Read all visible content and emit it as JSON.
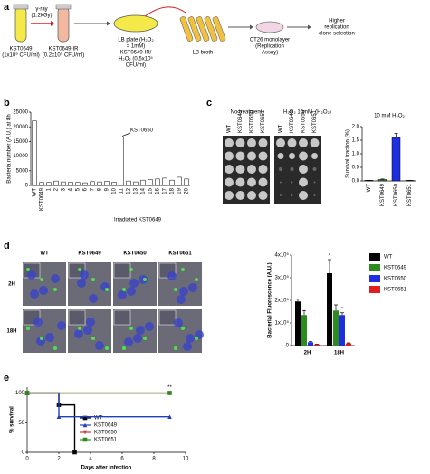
{
  "panel_labels": [
    "a",
    "b",
    "c",
    "d",
    "e"
  ],
  "diagram": {
    "wt_tube": [
      "KST0649",
      "(1x10⁹ CFU/ml)"
    ],
    "irradiation": [
      "γ-ray",
      "(1.2kGy)"
    ],
    "ir_tube": [
      "KST0649-IR",
      "(0.2x10⁹ CFU/ml)"
    ],
    "plate": [
      "LB plate (H₂O₂",
      "= 1mM)",
      "KST0649-IR/",
      "H₂O₂ (0.5x10⁵",
      "CFU/ml)"
    ],
    "broth": [
      "LB broth"
    ],
    "monolayer": [
      "CT26 monolayer",
      "(Replication",
      "Assay)"
    ],
    "selection": [
      "Higher",
      "replication",
      "clone selection"
    ]
  },
  "plates": {
    "groups": [
      "No treatment",
      "H₂O₂ 10mM"
    ],
    "reagent": "(H₂O₂)",
    "strains": [
      "WT",
      "KST0649",
      "KST0650",
      "KST0651"
    ]
  },
  "microscopy": {
    "columns": [
      "WT",
      "KST0649",
      "KST0650",
      "KST0651"
    ],
    "rows": [
      "2H",
      "18H"
    ]
  },
  "chart_data": [
    {
      "type": "bar",
      "ylabel": "Bacteria number (A.U.) at 8h",
      "xlabel": "Irradiated KST0649",
      "annotation": "KST0650",
      "categories": [
        "WT",
        "KST0649",
        "1",
        "2",
        "3",
        "4",
        "5",
        "6",
        "7",
        "8",
        "9",
        "10",
        "11",
        "12",
        "13",
        "14",
        "15",
        "16",
        "17",
        "18",
        "19",
        "20"
      ],
      "values": [
        22000,
        1000,
        1000,
        1500,
        1200,
        1100,
        1000,
        900,
        1300,
        1200,
        1400,
        1100,
        16500,
        1500,
        1200,
        1800,
        2000,
        2200,
        2500,
        1800,
        2800,
        2200
      ],
      "color": "#ffffff",
      "ylim": [
        0,
        25000
      ],
      "yticks": [
        0,
        5000,
        10000,
        15000,
        20000,
        25000
      ]
    },
    {
      "type": "bar",
      "title": "10 mM H₂O₂",
      "ylabel": "Survival fraction (%)",
      "categories": [
        "WT",
        "KST0649",
        "KST0650",
        "KST0651"
      ],
      "values": [
        0.02,
        0.05,
        1.6,
        0.02
      ],
      "errors": [
        0,
        0.02,
        0.15,
        0
      ],
      "colors": [
        "#000000",
        "#2e8b1f",
        "#1f2fe0",
        "#e01f1f"
      ],
      "ylim": [
        0,
        2
      ],
      "yticks": [
        {
          "value": 0,
          "label": "0.0"
        },
        0.5,
        {
          "value": 1,
          "label": "1.0"
        },
        1.5,
        {
          "value": 2,
          "label": "2.0"
        }
      ]
    },
    {
      "type": "grouped_bar",
      "ylabel": "Bacterial Fluorescence (A.U.)",
      "categories": [
        "2H",
        "18H"
      ],
      "annotations": [
        "*",
        "*"
      ],
      "legend": "right",
      "series": [
        {
          "name": "WT",
          "color": "#000000",
          "values": [
            195000,
            320000
          ],
          "errors": [
            10000,
            60000
          ]
        },
        {
          "name": "KST0649",
          "color": "#2e8b1f",
          "values": [
            135000,
            155000
          ],
          "errors": [
            20000,
            25000
          ]
        },
        {
          "name": "KST0650",
          "color": "#1f2fe0",
          "values": [
            15000,
            135000
          ],
          "errors": [
            3000,
            10000
          ]
        },
        {
          "name": "KST0651",
          "color": "#e01f1f",
          "values": [
            5000,
            10000
          ],
          "errors": [
            1000,
            2000
          ]
        }
      ],
      "ylim": [
        0,
        400000
      ],
      "yticks": [
        0,
        {
          "value": 100000,
          "label": "1x10⁵"
        },
        {
          "value": 200000,
          "label": "2x10⁵"
        },
        {
          "value": 300000,
          "label": "3x10⁵"
        },
        {
          "value": 400000,
          "label": "4x10⁵"
        }
      ]
    },
    {
      "type": "step",
      "xlabel": "Days after infection",
      "ylabel": "% survival",
      "annotation": "**",
      "series": [
        {
          "name": "WT",
          "color": "#000000",
          "marker": "square",
          "x": [
            0,
            2,
            3
          ],
          "values": [
            100,
            80,
            0
          ]
        },
        {
          "name": "KST0649",
          "color": "#1f3fbf",
          "marker": "triangle",
          "x": [
            0,
            2,
            9
          ],
          "values": [
            100,
            60,
            60
          ]
        },
        {
          "name": "KST0650",
          "color": "#c0392b",
          "marker": "triangle-down",
          "x": [
            0,
            9
          ],
          "values": [
            100,
            100
          ]
        },
        {
          "name": "KST0651",
          "color": "#2e8b1f",
          "marker": "square",
          "x": [
            0,
            9
          ],
          "values": [
            100,
            100
          ]
        }
      ],
      "xlim": [
        0,
        10
      ],
      "ylim": [
        0,
        110
      ],
      "xticks": [
        0,
        2,
        4,
        6,
        8,
        10
      ],
      "yticks": [
        0,
        50,
        100
      ]
    }
  ]
}
